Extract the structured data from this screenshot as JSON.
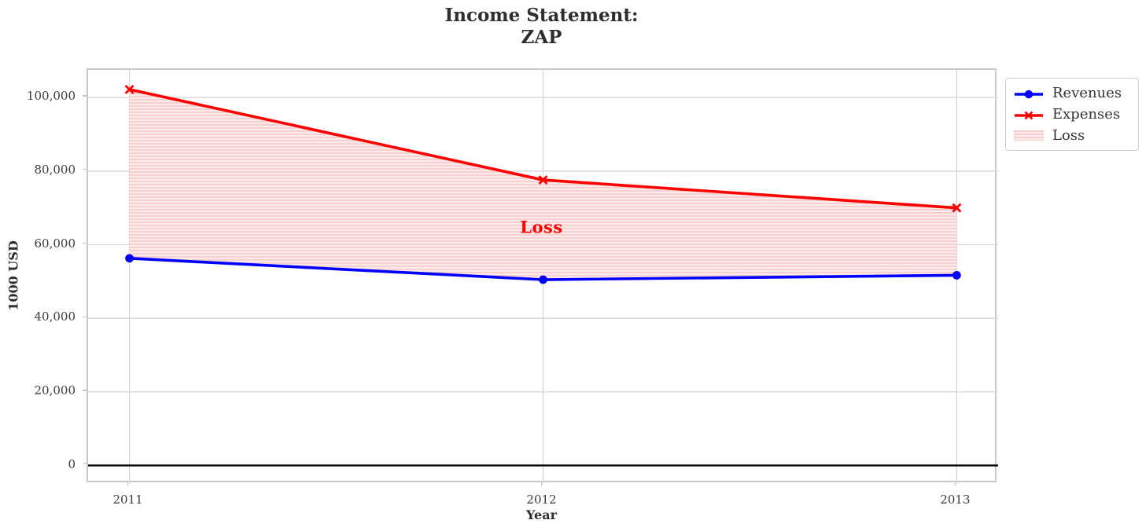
{
  "title": {
    "line1": "Income Statement:",
    "line2": "ZAP"
  },
  "legend": {
    "items": [
      {
        "label": "Revenues",
        "marker": "circle-on-line",
        "color": "#0000ff"
      },
      {
        "label": "Expenses",
        "marker": "x-on-line",
        "color": "#ff0000"
      },
      {
        "label": "Loss",
        "marker": "hatched-patch",
        "color": "#f8cdcd"
      }
    ]
  },
  "chart_data": {
    "type": "line",
    "title": "Income Statement:\nZAP",
    "xlabel": "Year",
    "ylabel": "1000 USD",
    "x": [
      2011,
      2012,
      2013
    ],
    "series": [
      {
        "name": "Revenues",
        "color": "#0000ff",
        "marker": "circle",
        "values": [
          56300,
          50500,
          51700
        ]
      },
      {
        "name": "Expenses",
        "color": "#ff0000",
        "marker": "x",
        "values": [
          102200,
          77600,
          70000
        ]
      }
    ],
    "fill_between": {
      "label": "Loss",
      "lower_series": "Revenues",
      "upper_series": "Expenses",
      "fill_light": "#fdeaea",
      "fill_stripe": "#f8cdcd",
      "hatch": "horizontal"
    },
    "annotation": {
      "text": "Loss",
      "x": 2012,
      "y": 64300,
      "color": "#ff0000"
    },
    "xlim": [
      2010.9,
      2013.1
    ],
    "ylim": [
      -5000,
      107500
    ],
    "xticks": [
      2011,
      2012,
      2013
    ],
    "xtick_labels": [
      "2011",
      "2012",
      "2013"
    ],
    "yticks": [
      0,
      20000,
      40000,
      60000,
      80000,
      100000
    ],
    "ytick_labels": [
      "0",
      "20,000",
      "40,000",
      "60,000",
      "80,000",
      "100,000"
    ],
    "grid": true,
    "grid_color": "#d6d6d6",
    "zero_line_color": "#000000",
    "legend_position": "outside-upper-right"
  }
}
